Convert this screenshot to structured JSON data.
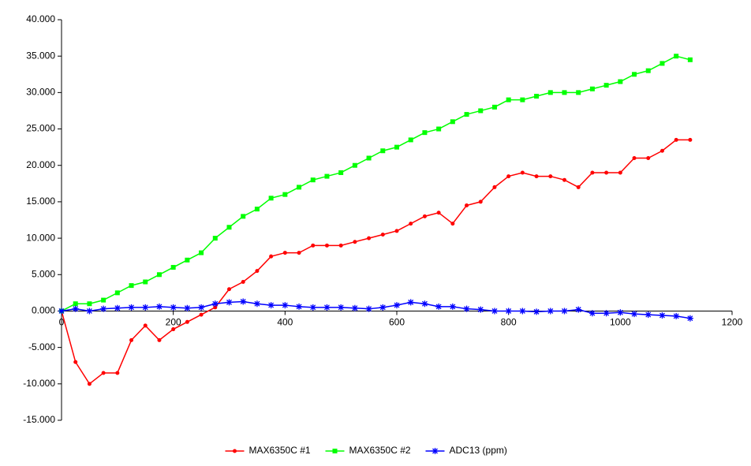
{
  "chart_data": {
    "type": "line",
    "x": [
      0,
      25,
      50,
      75,
      100,
      125,
      150,
      175,
      200,
      225,
      250,
      275,
      300,
      325,
      350,
      375,
      400,
      425,
      450,
      475,
      500,
      525,
      550,
      575,
      600,
      625,
      650,
      675,
      700,
      725,
      750,
      775,
      800,
      825,
      850,
      875,
      900,
      925,
      950,
      975,
      1000,
      1025,
      1050,
      1075,
      1100,
      1125
    ],
    "series": [
      {
        "name": "MAX6350C #1",
        "color": "#ff0000",
        "marker": "circle",
        "values": [
          0,
          -7,
          -10,
          -8.5,
          -8.5,
          -4,
          -2,
          -4,
          -2.5,
          -1.5,
          -0.5,
          0.5,
          3,
          4,
          5.5,
          7.5,
          8,
          8,
          9,
          9,
          9,
          9.5,
          10,
          10.5,
          11,
          12,
          13,
          13.5,
          12,
          14.5,
          15,
          17,
          18.5,
          19,
          18.5,
          18.5,
          18,
          17,
          19,
          19,
          19,
          21,
          21,
          22,
          23.5,
          23.5
        ]
      },
      {
        "name": "MAX6350C #2",
        "color": "#00ff00",
        "marker": "square",
        "values": [
          0,
          1,
          1,
          1.5,
          2.5,
          3.5,
          4,
          5,
          6,
          7,
          8,
          10,
          11.5,
          13,
          14,
          15.5,
          16,
          17,
          18,
          18.5,
          19,
          20,
          21,
          22,
          22.5,
          23.5,
          24.5,
          25,
          26,
          27,
          27.5,
          28,
          29,
          29,
          29.5,
          30,
          30,
          30,
          30.5,
          31,
          31.5,
          32.5,
          33,
          34,
          35,
          34.5
        ]
      },
      {
        "name": "ADC13 (ppm)",
        "color": "#0000ff",
        "marker": "star",
        "values": [
          0,
          0.3,
          0,
          0.3,
          0.4,
          0.5,
          0.5,
          0.6,
          0.5,
          0.4,
          0.5,
          1,
          1.2,
          1.3,
          1,
          0.8,
          0.8,
          0.6,
          0.5,
          0.5,
          0.5,
          0.4,
          0.3,
          0.5,
          0.8,
          1.2,
          1,
          0.6,
          0.6,
          0.3,
          0.2,
          0,
          0,
          0,
          -0.1,
          0,
          0,
          0.2,
          -0.3,
          -0.3,
          -0.2,
          -0.4,
          -0.5,
          -0.6,
          -0.7,
          -1
        ]
      }
    ],
    "xlim": [
      0,
      1200
    ],
    "xticks": [
      0,
      200,
      400,
      600,
      800,
      1000,
      1200
    ],
    "ylim": [
      -15,
      40
    ],
    "yticks": [
      {
        "value": -15,
        "label": "-15.000"
      },
      {
        "value": -10,
        "label": "-10.000"
      },
      {
        "value": -5,
        "label": "-5.000"
      },
      {
        "value": 0,
        "label": "0.000"
      },
      {
        "value": 5,
        "label": "5.000"
      },
      {
        "value": 10,
        "label": "10.000"
      },
      {
        "value": 15,
        "label": "15.000"
      },
      {
        "value": 20,
        "label": "20.000"
      },
      {
        "value": 25,
        "label": "25.000"
      },
      {
        "value": 30,
        "label": "30.000"
      },
      {
        "value": 35,
        "label": "35.000"
      },
      {
        "value": 40,
        "label": "40.000"
      }
    ],
    "legend": "bottom"
  }
}
